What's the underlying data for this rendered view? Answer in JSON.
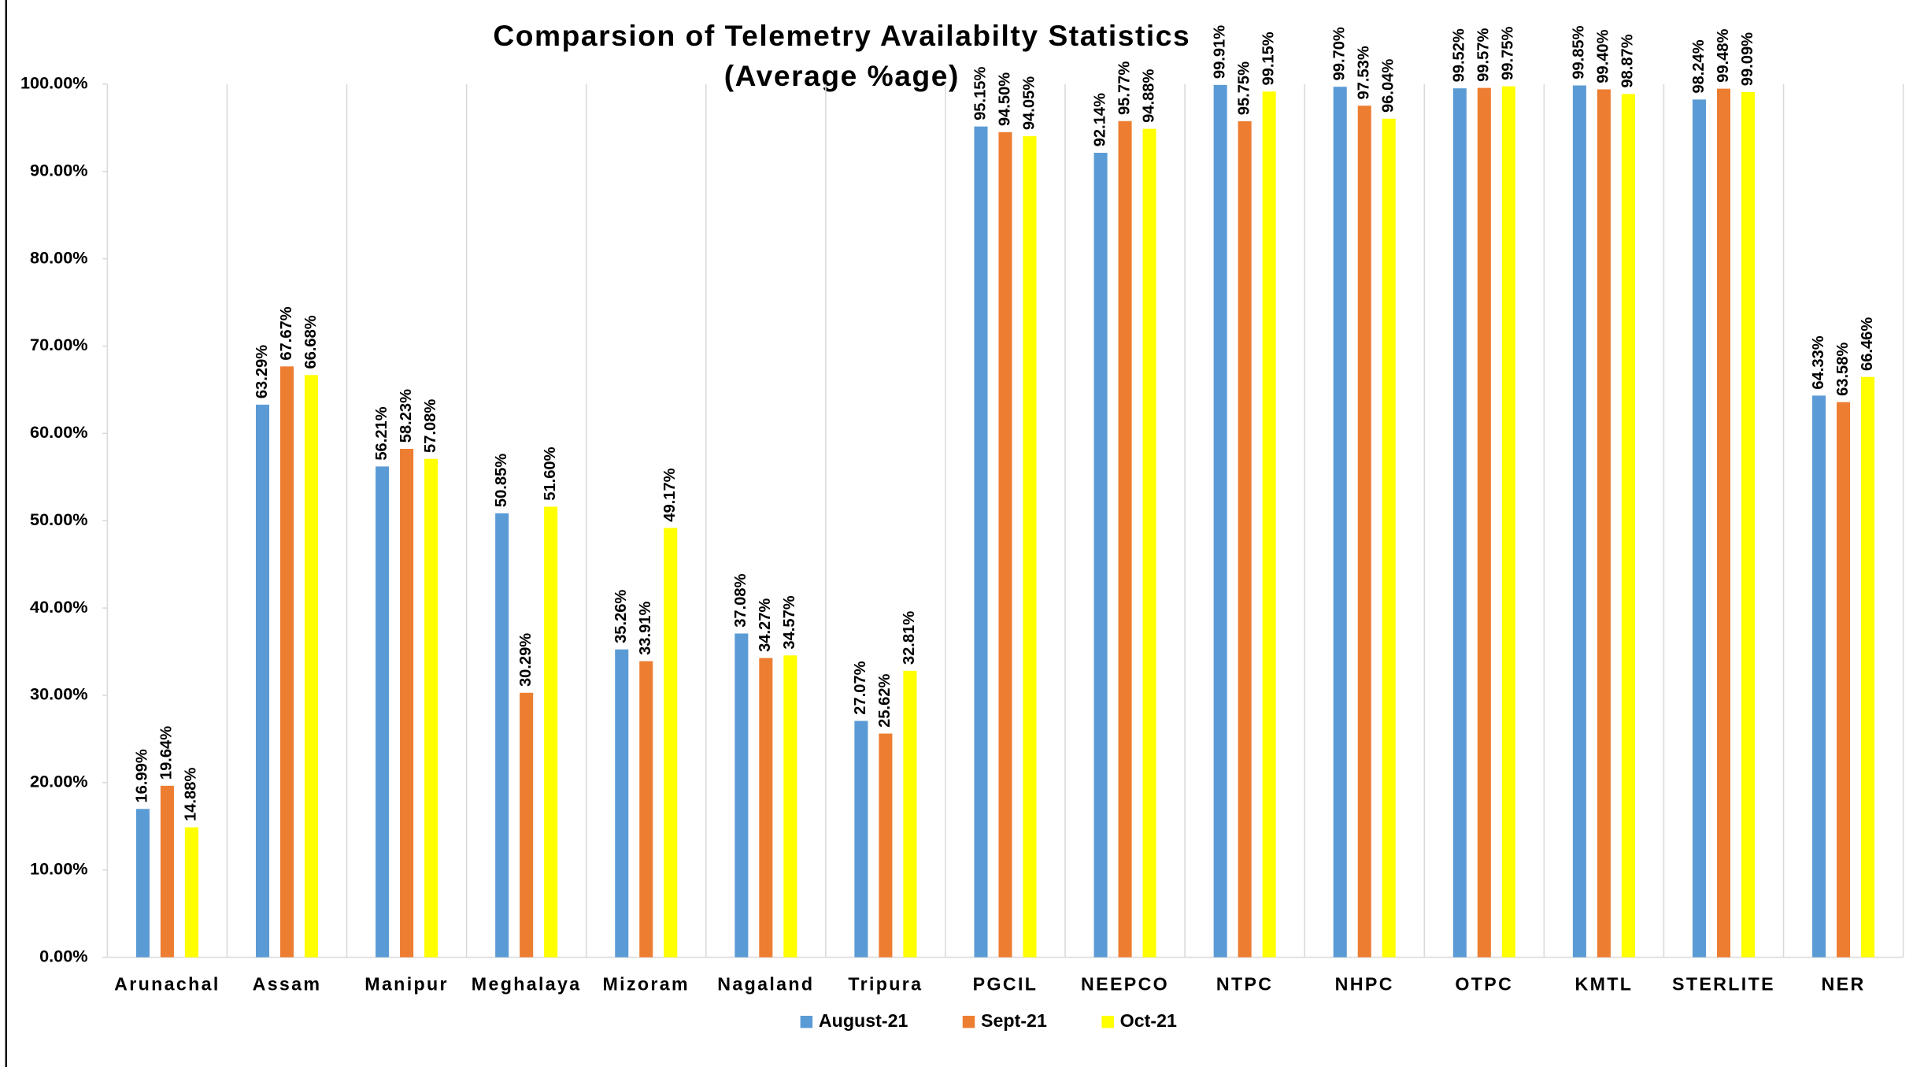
{
  "chart_data": {
    "type": "bar",
    "title": [
      "Comparsion of Telemetry Availabilty Statistics",
      "(Average %age)"
    ],
    "categories": [
      "Arunachal",
      "Assam",
      "Manipur",
      "Meghalaya",
      "Mizoram",
      "Nagaland",
      "Tripura",
      "PGCIL",
      "NEEPCO",
      "NTPC",
      "NHPC",
      "OTPC",
      "KMTL",
      "STERLITE",
      "NER"
    ],
    "series": [
      {
        "name": "August-21",
        "color": "#5b9bd5",
        "values": [
          16.99,
          63.29,
          56.21,
          50.85,
          35.26,
          37.08,
          27.07,
          95.15,
          92.14,
          99.91,
          99.7,
          99.52,
          99.85,
          98.24,
          64.33
        ],
        "value_labels": [
          "16.99%",
          "63.29%",
          "56.21%",
          "50.85%",
          "35.26%",
          "37.08%",
          "27.07%",
          "95.15%",
          "92.14%",
          "99.91%",
          "99.70%",
          "99.52%",
          "99.85%",
          "98.24%",
          "64.33%"
        ]
      },
      {
        "name": "Sept-21",
        "color": "#ed7d31",
        "values": [
          19.64,
          67.67,
          58.23,
          30.29,
          33.91,
          34.27,
          25.62,
          94.5,
          95.77,
          95.75,
          97.53,
          99.57,
          99.4,
          99.48,
          63.58
        ],
        "value_labels": [
          "19.64%",
          "67.67%",
          "58.23%",
          "30.29%",
          "33.91%",
          "34.27%",
          "25.62%",
          "94.50%",
          "95.77%",
          "95.75%",
          "97.53%",
          "99.57%",
          "99.40%",
          "99.48%",
          "63.58%"
        ]
      },
      {
        "name": "Oct-21",
        "color": "#ffff00",
        "values": [
          14.88,
          66.68,
          57.08,
          51.6,
          49.17,
          34.57,
          32.81,
          94.05,
          94.88,
          99.15,
          96.04,
          99.75,
          98.87,
          99.09,
          66.46
        ],
        "value_labels": [
          "14.88%",
          "66.68%",
          "57.08%",
          "51.60%",
          "49.17%",
          "34.57%",
          "32.81%",
          "94.05%",
          "94.88%",
          "99.15%",
          "96.04%",
          "99.75%",
          "98.87%",
          "99.09%",
          "66.46%"
        ]
      }
    ],
    "ylim": [
      0,
      100
    ],
    "yticks": [
      {
        "value": 0,
        "label": "0.00%"
      },
      {
        "value": 10,
        "label": "10.00%"
      },
      {
        "value": 20,
        "label": "20.00%"
      },
      {
        "value": 30,
        "label": "30.00%"
      },
      {
        "value": 40,
        "label": "40.00%"
      },
      {
        "value": 50,
        "label": "50.00%"
      },
      {
        "value": 60,
        "label": "60.00%"
      },
      {
        "value": 70,
        "label": "70.00%"
      },
      {
        "value": 80,
        "label": "80.00%"
      },
      {
        "value": 90,
        "label": "90.00%"
      },
      {
        "value": 100,
        "label": "100.00%"
      }
    ],
    "legend": "bottom"
  }
}
